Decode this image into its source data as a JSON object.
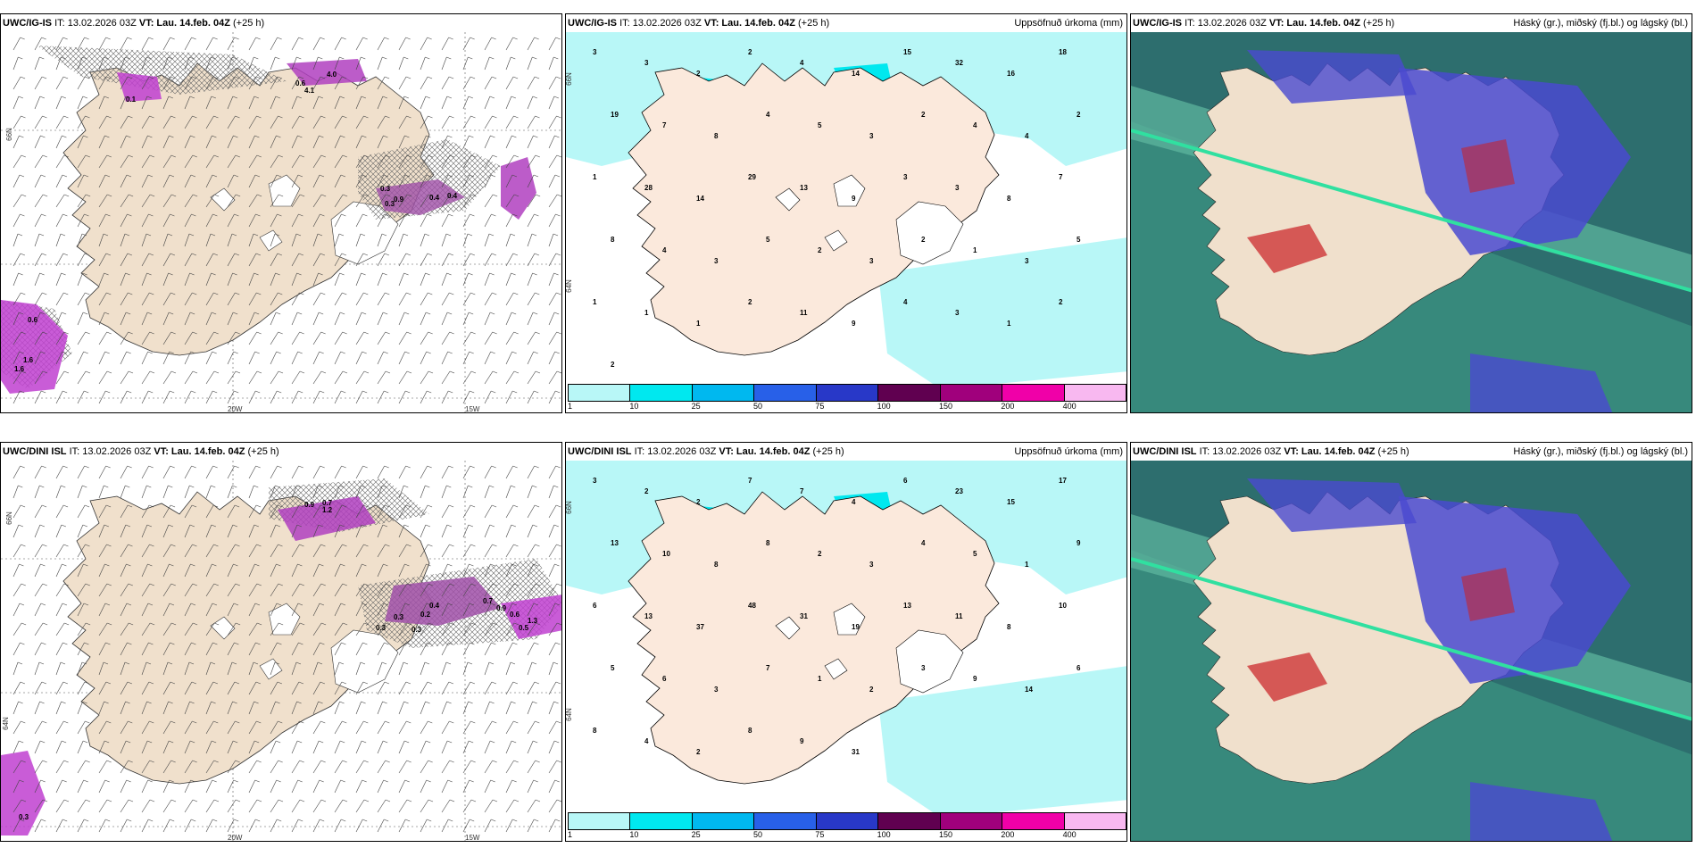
{
  "panels": {
    "p1": {
      "model": "UWC/IG-IS",
      "it": "IT: 13.02.2026 03Z",
      "vt_label": "VT:",
      "vt": "Lau. 14.feb. 04Z",
      "lead": "(+25 h)",
      "right": ""
    },
    "p2": {
      "model": "UWC/IG-IS",
      "it": "IT: 13.02.2026 03Z",
      "vt_label": "VT:",
      "vt": "Lau. 14.feb. 04Z",
      "lead": "(+25 h)",
      "right": "Uppsöfnuð úrkoma (mm)"
    },
    "p3": {
      "model": "UWC/IG-IS",
      "it": "IT: 13.02.2026 03Z",
      "vt_label": "VT:",
      "vt": "Lau. 14.feb. 04Z",
      "lead": "(+25 h)",
      "right": "Háský (gr.), miðský (fj.bl.) og lágský (bl.)"
    },
    "p4": {
      "model": "UWC/DINI ISL",
      "it": "IT: 13.02.2026 03Z",
      "vt_label": "VT:",
      "vt": "Lau. 14.feb. 04Z",
      "lead": "(+25 h)",
      "right": ""
    },
    "p5": {
      "model": "UWC/DINI ISL",
      "it": "IT: 13.02.2026 03Z",
      "vt_label": "VT:",
      "vt": "Lau. 14.feb. 04Z",
      "lead": "(+25 h)",
      "right": "Uppsöfnuð úrkoma (mm)"
    },
    "p6": {
      "model": "UWC/DINI ISL",
      "it": "IT: 13.02.2026 03Z",
      "vt_label": "VT:",
      "vt": "Lau. 14.feb. 04Z",
      "lead": "(+25 h)",
      "right": "Háský (gr.), miðský (fj.bl.) og lágský (bl.)"
    }
  },
  "axes": {
    "lat": "66N",
    "lon1": "20W",
    "lon2": "15W",
    "lat2": "64N"
  },
  "legend": {
    "colors": [
      "#b8f7f7",
      "#00e8ef",
      "#00b8ef",
      "#2860e8",
      "#2838c8",
      "#600050",
      "#a0007c",
      "#f000a8",
      "#f8b8f0"
    ],
    "ticks": [
      "1",
      "10",
      "25",
      "50",
      "75",
      "100",
      "150",
      "200",
      "400"
    ]
  },
  "precip_labels_top": [
    "3",
    "3",
    "2",
    "2",
    "4",
    "14",
    "15",
    "32",
    "16",
    "18",
    "19",
    "7",
    "8",
    "4",
    "5",
    "3",
    "2",
    "4",
    "4",
    "2",
    "1",
    "28",
    "14",
    "29",
    "13",
    "9",
    "3",
    "3",
    "8",
    "7",
    "8",
    "4",
    "3",
    "5",
    "2",
    "3",
    "2",
    "1",
    "3",
    "5",
    "1",
    "1",
    "1",
    "2",
    "11",
    "9",
    "4",
    "3",
    "1",
    "2",
    "2"
  ],
  "precip_labels_bottom": [
    "3",
    "2",
    "2",
    "7",
    "7",
    "4",
    "6",
    "23",
    "15",
    "17",
    "13",
    "10",
    "8",
    "8",
    "2",
    "3",
    "4",
    "5",
    "1",
    "9",
    "6",
    "13",
    "37",
    "48",
    "31",
    "19",
    "13",
    "11",
    "8",
    "10",
    "5",
    "6",
    "3",
    "7",
    "1",
    "2",
    "3",
    "9",
    "14",
    "6",
    "8",
    "4",
    "2",
    "8",
    "9",
    "31"
  ],
  "wind_labels_top": [
    "0.6",
    "4.1",
    "4.0",
    "0.1",
    "0.3",
    "0.9",
    "0.4",
    "0.4",
    "0.3",
    "0.6",
    "1.6",
    "1.6"
  ],
  "wind_labels_bottom": [
    "0.9",
    "0.7",
    "0.4",
    "0.2",
    "0.3",
    "0.3",
    "0.3",
    "0.7",
    "1.3",
    "0.5",
    "0.6",
    "0.9",
    "1.2",
    "0.3"
  ]
}
